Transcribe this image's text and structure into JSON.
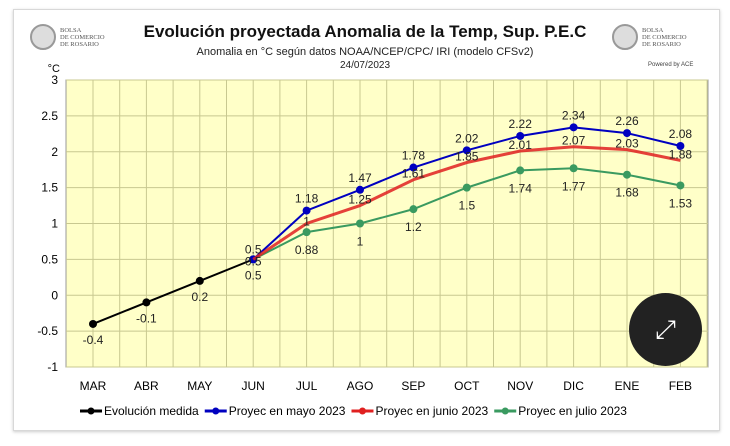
{
  "header": {
    "title": "Evolución proyectada Anomalia de la Temp, Sup.  P.E.C",
    "subtitle": "Anomalia en °C según datos NOAA/NCEP/CPC/ IRI (modelo CFSv2)",
    "date": "24/07/2023",
    "logo_text": "BOLSA DE COMERCIO DE ROSARIO",
    "powered": "Powered by ACE",
    "expand_icon": "expand-arrows-icon"
  },
  "chart_data": {
    "type": "line",
    "ylabel": "°C",
    "ylim": [
      -1,
      3
    ],
    "yticks": [
      3,
      2.5,
      2,
      1.5,
      1,
      0.5,
      0,
      -0.5,
      -1
    ],
    "grid": true,
    "legend": "bottom",
    "background": "#ffffc8",
    "categories": [
      "MAR",
      "ABR",
      "MAY",
      "JUN",
      "JUL",
      "AGO",
      "SEP",
      "OCT",
      "NOV",
      "DIC",
      "ENE",
      "FEB"
    ],
    "series": [
      {
        "name": "Evolución medida",
        "color": "#000000",
        "values": [
          -0.4,
          -0.1,
          0.2,
          0.5,
          null,
          null,
          null,
          null,
          null,
          null,
          null,
          null
        ],
        "labels": [
          "-0.4",
          "-0.1",
          "0.2",
          "0.5",
          "",
          "",
          "",
          "",
          "",
          "",
          "",
          ""
        ]
      },
      {
        "name": "Proyec en mayo 2023",
        "color": "#0000c0",
        "values": [
          null,
          null,
          null,
          0.5,
          1.18,
          1.47,
          1.78,
          2.02,
          2.22,
          2.34,
          2.26,
          2.08
        ],
        "labels": [
          "",
          "",
          "",
          "",
          "1.18",
          "1.47",
          "1.78",
          "2.02",
          "2.22",
          "2.34",
          "2.26",
          "2.08"
        ]
      },
      {
        "name": "Proyec en junio 2023",
        "color": "#e02020",
        "values": [
          null,
          null,
          null,
          0.5,
          1,
          1.25,
          1.61,
          1.85,
          2.01,
          2.07,
          2.03,
          1.88
        ],
        "labels": [
          "",
          "",
          "",
          "0.5",
          "1",
          "1.25",
          "1.61",
          "1.85",
          "2.01",
          "2.07",
          "2.03",
          "1.88"
        ]
      },
      {
        "name": "Proyec en julio 2023",
        "color": "#3a9a60",
        "values": [
          null,
          null,
          null,
          0.5,
          0.88,
          1,
          1.2,
          1.5,
          1.74,
          1.77,
          1.68,
          1.53
        ],
        "labels": [
          "",
          "",
          "",
          "0.5",
          "0.88",
          "1",
          "1.2",
          "1.5",
          "1.74",
          "1.77",
          "1.68",
          "1.53"
        ]
      }
    ]
  }
}
